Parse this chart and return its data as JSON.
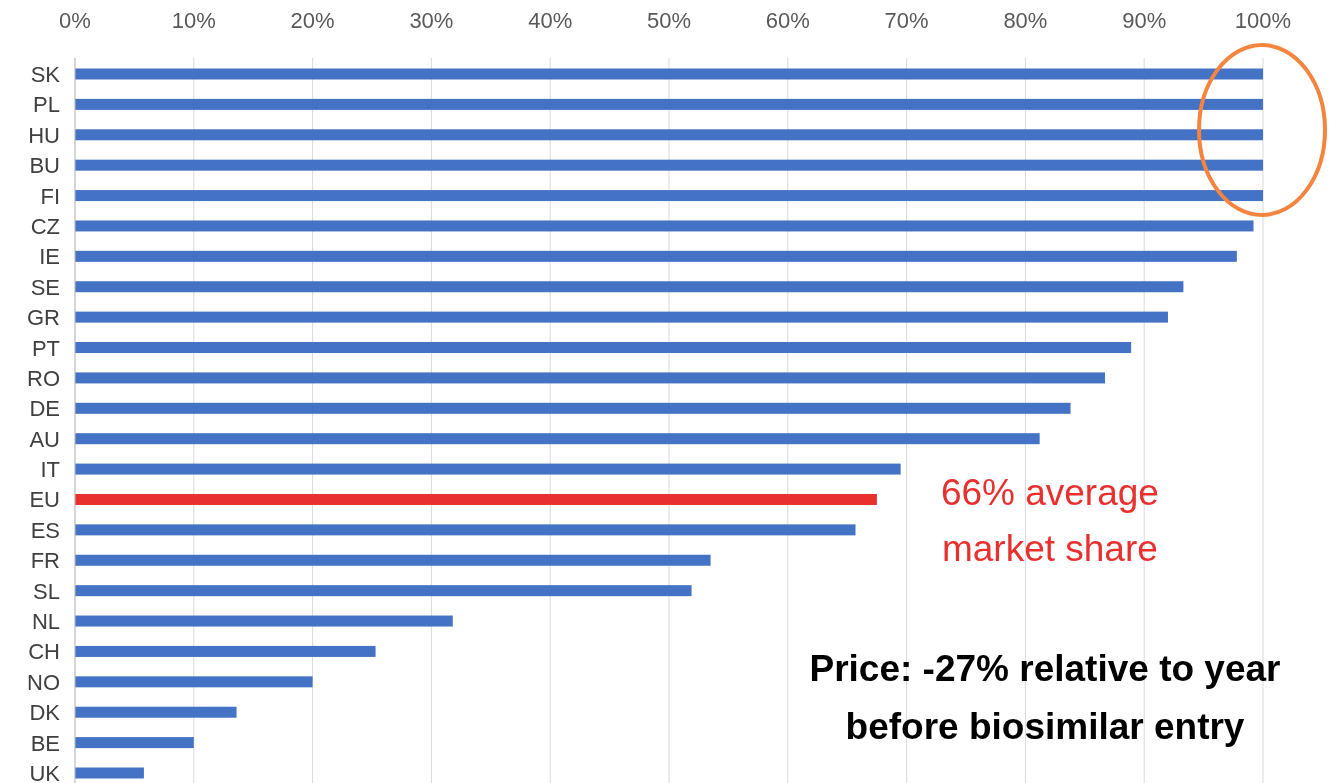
{
  "chart_data": {
    "type": "bar",
    "orientation": "horizontal",
    "categories": [
      "SK",
      "PL",
      "HU",
      "BU",
      "FI",
      "CZ",
      "IE",
      "SE",
      "GR",
      "PT",
      "RO",
      "DE",
      "AU",
      "IT",
      "EU",
      "ES",
      "FR",
      "SL",
      "NL",
      "CH",
      "NO",
      "DK",
      "BE",
      "UK"
    ],
    "values": [
      100,
      100,
      100,
      100,
      100,
      99.2,
      97.8,
      93.3,
      92.0,
      88.9,
      86.7,
      83.8,
      81.2,
      69.5,
      67.5,
      65.7,
      53.5,
      51.9,
      31.8,
      25.3,
      20.0,
      13.6,
      10.0,
      5.8
    ],
    "colors": [
      "#4472c4",
      "#4472c4",
      "#4472c4",
      "#4472c4",
      "#4472c4",
      "#4472c4",
      "#4472c4",
      "#4472c4",
      "#4472c4",
      "#4472c4",
      "#4472c4",
      "#4472c4",
      "#4472c4",
      "#4472c4",
      "#e8302f",
      "#4472c4",
      "#4472c4",
      "#4472c4",
      "#4472c4",
      "#4472c4",
      "#4472c4",
      "#4472c4",
      "#4472c4",
      "#4472c4"
    ],
    "xlim": [
      0,
      100
    ],
    "xticks": [
      {
        "value": 0,
        "label": "0%"
      },
      {
        "value": 10,
        "label": "10%"
      },
      {
        "value": 20,
        "label": "20%"
      },
      {
        "value": 30,
        "label": "30%"
      },
      {
        "value": 40,
        "label": "40%"
      },
      {
        "value": 50,
        "label": "50%"
      },
      {
        "value": 60,
        "label": "60%"
      },
      {
        "value": 70,
        "label": "70%"
      },
      {
        "value": 80,
        "label": "80%"
      },
      {
        "value": 90,
        "label": "90%"
      },
      {
        "value": 100,
        "label": "100%"
      }
    ],
    "grid": "x",
    "annotations": [
      {
        "text": "66% average market share",
        "x": 67.5,
        "y": "EU"
      },
      "Price: -27% relative to year before biosimilar entry"
    ]
  }
}
